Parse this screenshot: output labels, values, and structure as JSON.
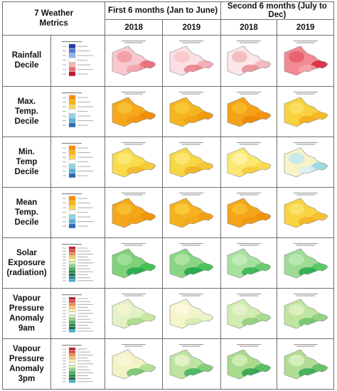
{
  "header": {
    "metrics_title": "7 Weather\nMetrics",
    "group_first": "First 6 months (Jan to June)",
    "group_second": "Second 6 months (July to Dec)",
    "years": [
      "2018",
      "2019",
      "2018",
      "2019"
    ]
  },
  "rows": [
    {
      "label": "Rainfall\nDecile",
      "legend": [
        "#1f3aa8",
        "#4f78d8",
        "#8fb3ee",
        "#ffffff",
        "#f5b6b6",
        "#ea6b6b",
        "#c2182a"
      ],
      "maps": [
        {
          "base": "#f7c9cf",
          "spots": [
            "#e9626e",
            "#f29aa3",
            "#f2a0a8"
          ]
        },
        {
          "base": "#fae0e3",
          "spots": [
            "#f2a3aa",
            "#f7c5ca",
            "#eb7b85"
          ]
        },
        {
          "base": "#fbe6e8",
          "spots": [
            "#f3b1b7",
            "#eeb7bb",
            "#e98b93"
          ]
        },
        {
          "base": "#f18a93",
          "spots": [
            "#d9263a",
            "#e85d6a",
            "#f4a7ae"
          ]
        }
      ]
    },
    {
      "label": "Max.\nTemp.\nDecile",
      "legend": [
        "#ff8c00",
        "#ffb300",
        "#ffd54f",
        "#ffffff",
        "#8fd6e8",
        "#4fb3d9",
        "#2a6ab7"
      ],
      "maps": [
        {
          "base": "#f6a81a",
          "spots": [
            "#ee8a0b",
            "#f8c236",
            "#f09512"
          ]
        },
        {
          "base": "#f5b51f",
          "spots": [
            "#f0940e",
            "#f8c93a",
            "#f1a016"
          ]
        },
        {
          "base": "#f4a318",
          "spots": [
            "#ef900f",
            "#f7b92c",
            "#ed8708"
          ]
        },
        {
          "base": "#f8d13e",
          "spots": [
            "#f5b726",
            "#fbe066",
            "#f4ab1c"
          ]
        }
      ]
    },
    {
      "label": "Min.\nTemp\nDecile",
      "legend": [
        "#ff8c00",
        "#ffb300",
        "#ffd54f",
        "#ffffff",
        "#8fd6e8",
        "#4fb3d9",
        "#2a6ab7"
      ],
      "maps": [
        {
          "base": "#f9dc4c",
          "spots": [
            "#f6c534",
            "#fbea7a",
            "#f4b52a"
          ]
        },
        {
          "base": "#f8d747",
          "spots": [
            "#f5c233",
            "#fbe678",
            "#f3af26"
          ]
        },
        {
          "base": "#fbe872",
          "spots": [
            "#f9d848",
            "#fdf3a8",
            "#f7c937"
          ]
        },
        {
          "base": "#f7f3c7",
          "spots": [
            "#8fd6e8",
            "#bfe8f0",
            "#d7f0f3"
          ]
        }
      ]
    },
    {
      "label": "Mean\nTemp.\nDecile",
      "legend": [
        "#ff8c00",
        "#ffb300",
        "#ffd54f",
        "#ffffff",
        "#8fd6e8",
        "#4fb3d9",
        "#2a6ab7"
      ],
      "maps": [
        {
          "base": "#f5a71a",
          "spots": [
            "#f0900d",
            "#f8c133",
            "#f3a015"
          ]
        },
        {
          "base": "#f6b21e",
          "spots": [
            "#f19b12",
            "#f9cb3b",
            "#f3a819"
          ]
        },
        {
          "base": "#f4a51a",
          "spots": [
            "#ef8d0c",
            "#f8be30",
            "#f2990f"
          ]
        },
        {
          "base": "#f9d342",
          "spots": [
            "#f6bd2a",
            "#fce46c",
            "#f5b224"
          ]
        }
      ]
    },
    {
      "label": "Solar\nExposure\n(radiation)",
      "legend": [
        "#c2182a",
        "#e8463f",
        "#f58d45",
        "#f9c864",
        "#fdf3a8",
        "#d7f0b2",
        "#8fd18c",
        "#3fae5a",
        "#1a8a3e",
        "#0f6b4a",
        "#1f8a9a",
        "#3fb3d9"
      ],
      "maps": [
        {
          "base": "#7fd17a",
          "spots": [
            "#3dbd52",
            "#a5e09d",
            "#21a84a"
          ]
        },
        {
          "base": "#8ad583",
          "spots": [
            "#3fbf55",
            "#b2e4a8",
            "#1fa24a"
          ]
        },
        {
          "base": "#a8e19f",
          "spots": [
            "#5ec867",
            "#c4ebbb",
            "#2fb04f"
          ]
        },
        {
          "base": "#9ddc95",
          "spots": [
            "#4fc35c",
            "#c0e9b6",
            "#26aa4c"
          ]
        }
      ]
    },
    {
      "label": "Vapour\nPressure\nAnomaly\n9am",
      "legend": [
        "#c2182a",
        "#e8463f",
        "#f58d45",
        "#f9c864",
        "#fdf3a8",
        "#ffffff",
        "#d7f0b2",
        "#8fd18c",
        "#3fae5a",
        "#1a8a3e",
        "#0f6b4a",
        "#3fb3d9"
      ],
      "maps": [
        {
          "base": "#e3f2c4",
          "spots": [
            "#c3e59e",
            "#f6f5cf",
            "#a6d885"
          ]
        },
        {
          "base": "#f5f4cd",
          "spots": [
            "#e6f2c4",
            "#fbf8dd",
            "#d3ebb1"
          ]
        },
        {
          "base": "#d2ecb2",
          "spots": [
            "#a5d888",
            "#e6f3cc",
            "#8fce7b"
          ]
        },
        {
          "base": "#bfe5a0",
          "spots": [
            "#8fce7b",
            "#dff0c0",
            "#6fc26a"
          ]
        }
      ]
    },
    {
      "label": "Vapour\nPressure\nAnomaly\n3pm",
      "legend": [
        "#c2182a",
        "#e8463f",
        "#f58d45",
        "#f9c864",
        "#fdf3a8",
        "#ffffff",
        "#d7f0b2",
        "#8fd18c",
        "#3fae5a",
        "#1a8a3e",
        "#0f6b4a",
        "#3fb3d9"
      ],
      "maps": [
        {
          "base": "#f3f3c6",
          "spots": [
            "#a9db8a",
            "#f8f6d6",
            "#6ec16b"
          ]
        },
        {
          "base": "#bde3a0",
          "spots": [
            "#7bc874",
            "#e6f3c9",
            "#3fb35a"
          ]
        },
        {
          "base": "#a9db8c",
          "spots": [
            "#4fb860",
            "#d6eeba",
            "#2aa24f"
          ]
        },
        {
          "base": "#b1de94",
          "spots": [
            "#5cbd66",
            "#dcf0c1",
            "#35aa55"
          ]
        }
      ]
    }
  ]
}
